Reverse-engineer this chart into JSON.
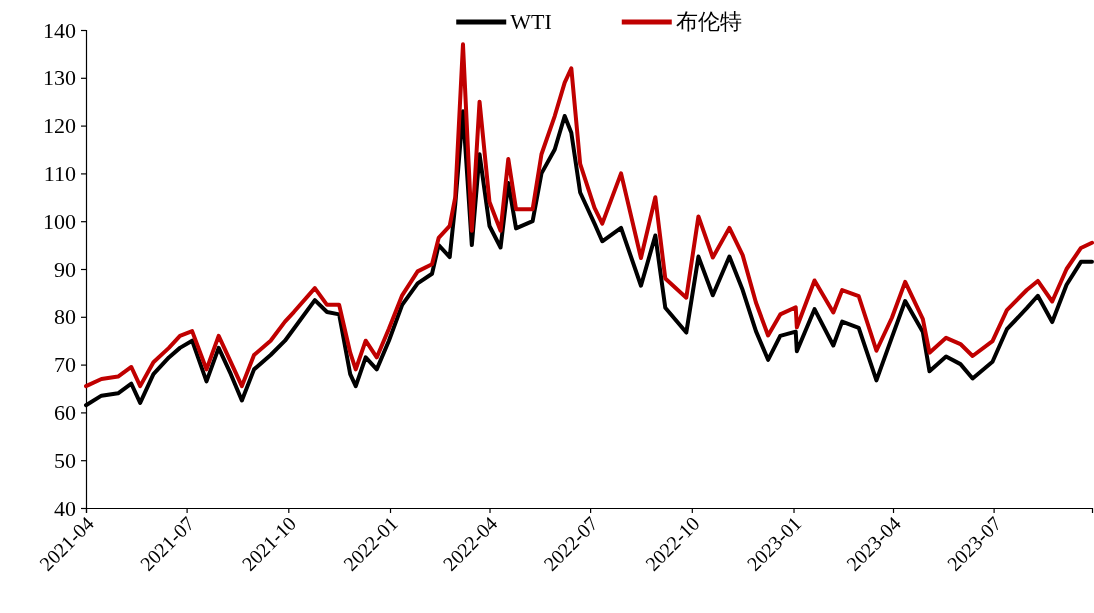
{
  "chart_data": {
    "type": "line",
    "x": [
      "2021-04-01",
      "2021-04-15",
      "2021-04-30",
      "2021-05-12",
      "2021-05-20",
      "2021-06-01",
      "2021-06-15",
      "2021-06-25",
      "2021-07-06",
      "2021-07-19",
      "2021-07-30",
      "2021-08-10",
      "2021-08-20",
      "2021-08-31",
      "2021-09-15",
      "2021-09-28",
      "2021-10-06",
      "2021-10-25",
      "2021-11-05",
      "2021-11-16",
      "2021-11-26",
      "2021-12-01",
      "2021-12-10",
      "2021-12-20",
      "2021-12-31",
      "2022-01-12",
      "2022-01-26",
      "2022-02-08",
      "2022-02-14",
      "2022-02-24",
      "2022-03-01",
      "2022-03-08",
      "2022-03-16",
      "2022-03-23",
      "2022-04-01",
      "2022-04-11",
      "2022-04-18",
      "2022-04-25",
      "2022-05-10",
      "2022-05-18",
      "2022-05-30",
      "2022-06-08",
      "2022-06-14",
      "2022-06-22",
      "2022-07-05",
      "2022-07-12",
      "2022-07-29",
      "2022-08-16",
      "2022-08-29",
      "2022-09-07",
      "2022-09-26",
      "2022-10-07",
      "2022-10-20",
      "2022-11-04",
      "2022-11-16",
      "2022-11-28",
      "2022-12-09",
      "2022-12-20",
      "2023-01-03",
      "2023-01-04",
      "2023-01-20",
      "2023-02-06",
      "2023-02-14",
      "2023-03-01",
      "2023-03-17",
      "2023-03-31",
      "2023-04-12",
      "2023-04-28",
      "2023-05-04",
      "2023-05-19",
      "2023-06-01",
      "2023-06-12",
      "2023-06-30",
      "2023-07-13",
      "2023-07-31",
      "2023-08-10",
      "2023-08-23",
      "2023-09-05",
      "2023-09-18",
      "2023-09-28"
    ],
    "series": [
      {
        "name": "WTI",
        "color": "#000000",
        "values": [
          61.5,
          63.5,
          64,
          66,
          62,
          68,
          71.5,
          73.5,
          75,
          66.5,
          73.5,
          68,
          62.5,
          69,
          72,
          75,
          77.5,
          83.5,
          81,
          80.5,
          68,
          65.5,
          71.5,
          69,
          75,
          82.5,
          87,
          89,
          95,
          92.5,
          103.5,
          123,
          95,
          114,
          99,
          94.5,
          108,
          98.5,
          100,
          110,
          115,
          122,
          118.5,
          106,
          99.5,
          95.8,
          98.6,
          86.5,
          97,
          81.9,
          76.7,
          92.6,
          84.5,
          92.6,
          85.6,
          77,
          71,
          76,
          76.9,
          72.8,
          81.6,
          74,
          79,
          77.7,
          66.7,
          75.7,
          83.3,
          76.8,
          68.6,
          71.7,
          70.1,
          67.1,
          70.6,
          77.4,
          81.8,
          84.4,
          78.9,
          86.7,
          91.5,
          91.5
        ]
      },
      {
        "name": "布伦特",
        "color": "#c00000",
        "values": [
          65.5,
          67,
          67.5,
          69.5,
          65.5,
          70.5,
          73.5,
          76,
          77,
          69,
          76,
          70.5,
          65.5,
          72,
          75,
          79,
          81,
          86,
          82.5,
          82.5,
          72.5,
          69,
          75,
          71.5,
          77.5,
          84.5,
          89.5,
          91,
          96.5,
          99,
          105,
          137,
          98,
          125,
          104,
          98,
          113,
          102.5,
          102.5,
          114,
          122,
          129,
          132,
          112,
          102.8,
          99.5,
          110,
          92.3,
          105,
          88,
          84,
          101,
          92.4,
          98.6,
          92.9,
          83,
          76.1,
          80.5,
          82,
          77.8,
          87.6,
          80.9,
          85.6,
          84.3,
          72.9,
          79.8,
          87.3,
          79.5,
          72.5,
          75.6,
          74.3,
          71.8,
          74.9,
          81.4,
          85.6,
          87.5,
          83.2,
          90,
          94.4,
          95.5
        ]
      }
    ],
    "xlim": [
      "2021-04-01",
      "2023-09-28"
    ],
    "xticks": [
      {
        "value": "2021-04-01",
        "label": "2021-04"
      },
      {
        "value": "2021-07-01",
        "label": "2021-07"
      },
      {
        "value": "2021-10-01",
        "label": "2021-10"
      },
      {
        "value": "2022-01-01",
        "label": "2022-01"
      },
      {
        "value": "2022-04-01",
        "label": "2022-04"
      },
      {
        "value": "2022-07-01",
        "label": "2022-07"
      },
      {
        "value": "2022-10-01",
        "label": "2022-10"
      },
      {
        "value": "2023-01-01",
        "label": "2023-01"
      },
      {
        "value": "2023-04-01",
        "label": "2023-04"
      },
      {
        "value": "2023-07-01",
        "label": "2023-07"
      }
    ],
    "ylim": [
      40,
      140
    ],
    "yticks": [
      40,
      50,
      60,
      70,
      80,
      90,
      100,
      110,
      120,
      130,
      140
    ],
    "legend": "top",
    "grid": false,
    "marker": "none",
    "line_style": "solid"
  }
}
